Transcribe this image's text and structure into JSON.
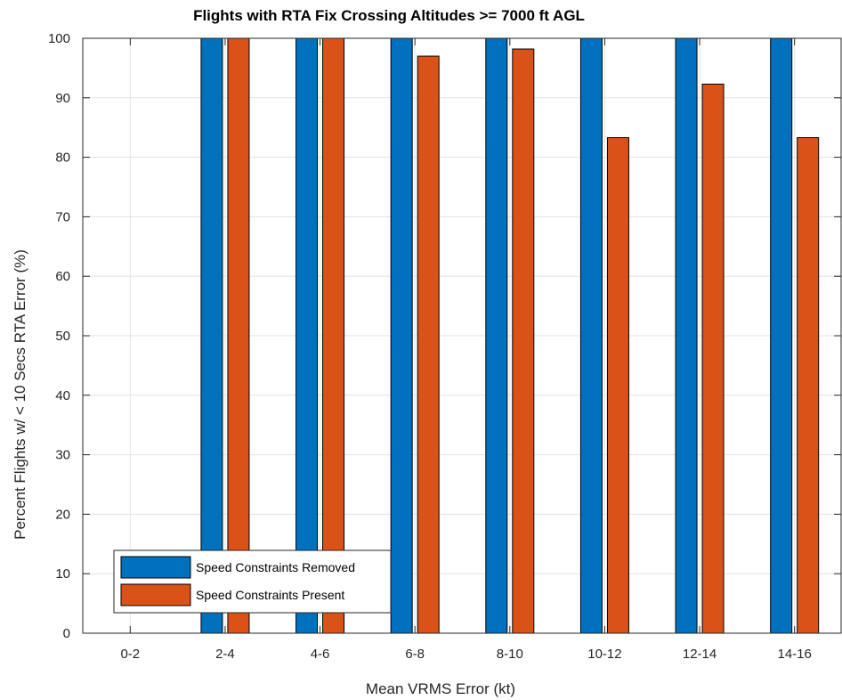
{
  "chart_data": {
    "type": "bar",
    "title": "Flights with RTA Fix Crossing Altitudes >= 7000 ft AGL",
    "xlabel": "Mean VRMS Error (kt)",
    "ylabel": "Percent Flights w/ < 10 Secs RTA Error (%)",
    "categories": [
      "0-2",
      "2-4",
      "4-6",
      "6-8",
      "8-10",
      "10-12",
      "12-14",
      "14-16"
    ],
    "series": [
      {
        "name": "Speed Constraints Removed",
        "color": "#0072BD",
        "values": [
          0,
          100,
          100,
          100,
          100,
          100,
          100,
          100
        ]
      },
      {
        "name": "Speed Constraints Present",
        "color": "#D95319",
        "values": [
          0,
          100,
          100,
          97,
          98.2,
          83.3,
          92.3,
          83.3
        ]
      }
    ],
    "ylim": [
      0,
      100
    ],
    "yticks": [
      0,
      10,
      20,
      30,
      40,
      50,
      60,
      70,
      80,
      90,
      100
    ],
    "grid": true,
    "legend_position": "bottom-left"
  }
}
